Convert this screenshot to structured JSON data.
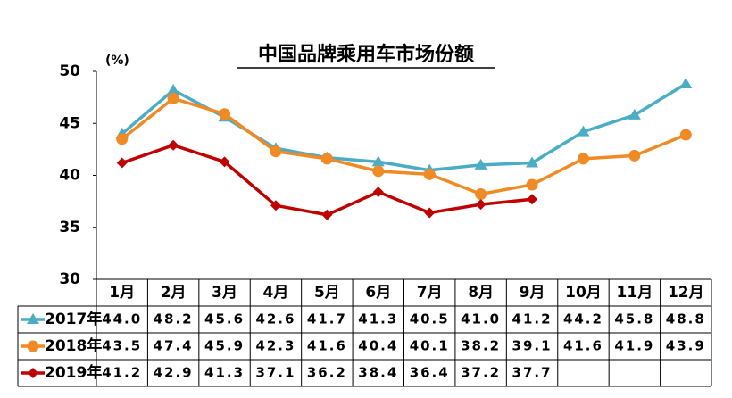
{
  "chart_data": {
    "type": "line",
    "title": "中国品牌乘用车市场份额",
    "y_unit": "(%)",
    "categories": [
      "1月",
      "2月",
      "3月",
      "4月",
      "5月",
      "6月",
      "7月",
      "8月",
      "9月",
      "10月",
      "11月",
      "12月"
    ],
    "ylim": [
      30,
      50
    ],
    "yticks": [
      30,
      35,
      40,
      45,
      50
    ],
    "series": [
      {
        "name": "2017年",
        "color": "#4bacc6",
        "marker": "triangle",
        "values": [
          44.0,
          48.2,
          45.6,
          42.6,
          41.7,
          41.3,
          40.5,
          41.0,
          41.2,
          44.2,
          45.8,
          48.8
        ],
        "value_labels": [
          "44.0",
          "48.2",
          "45.6",
          "42.6",
          "41.7",
          "41.3",
          "40.5",
          "41.0",
          "41.2",
          "44.2",
          "45.8",
          "48.8"
        ]
      },
      {
        "name": "2018年",
        "color": "#f08a24",
        "marker": "circle",
        "values": [
          43.5,
          47.4,
          45.9,
          42.3,
          41.6,
          40.4,
          40.1,
          38.2,
          39.1,
          41.6,
          41.9,
          43.9
        ],
        "value_labels": [
          "43.5",
          "47.4",
          "45.9",
          "42.3",
          "41.6",
          "40.4",
          "40.1",
          "38.2",
          "39.1",
          "41.6",
          "41.9",
          "43.9"
        ]
      },
      {
        "name": "2019年",
        "color": "#c00000",
        "marker": "diamond",
        "values": [
          41.2,
          42.9,
          41.3,
          37.1,
          36.2,
          38.4,
          36.4,
          37.2,
          37.7,
          null,
          null,
          null
        ],
        "value_labels": [
          "41.2",
          "42.9",
          "41.3",
          "37.1",
          "36.2",
          "38.4",
          "36.4",
          "37.2",
          "37.7",
          null,
          null,
          null
        ]
      }
    ]
  }
}
